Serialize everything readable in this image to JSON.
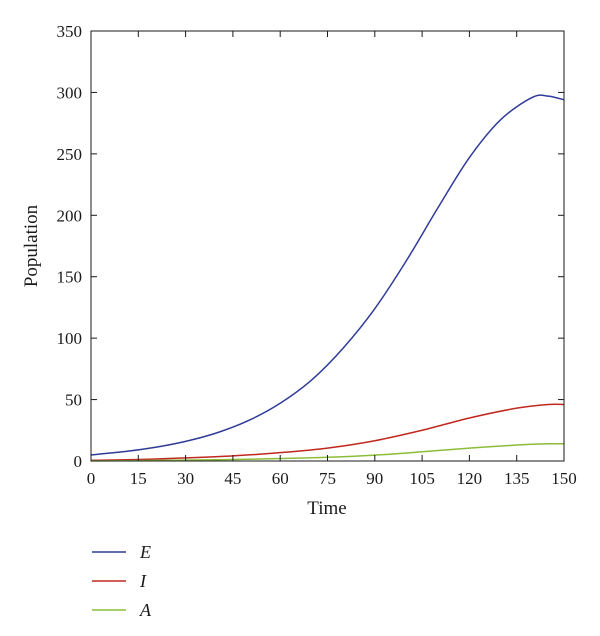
{
  "chart_data": {
    "type": "line",
    "xlabel": "Time",
    "ylabel": "Population",
    "xlim": [
      0,
      150
    ],
    "ylim": [
      0,
      350
    ],
    "xticks": [
      0,
      15,
      30,
      45,
      60,
      75,
      90,
      105,
      120,
      135,
      150
    ],
    "yticks": [
      0,
      50,
      100,
      150,
      200,
      250,
      300,
      350
    ],
    "grid": false,
    "legend_position": "below",
    "series": [
      {
        "name": "E",
        "color": "#2f3b98",
        "x": [
          0,
          10,
          20,
          30,
          40,
          50,
          60,
          70,
          80,
          90,
          100,
          110,
          120,
          130,
          140,
          145,
          150
        ],
        "values": [
          5,
          7.5,
          11,
          16,
          23,
          33,
          47,
          66,
          92,
          124,
          163,
          206,
          247,
          278,
          296,
          297,
          294
        ]
      },
      {
        "name": "I",
        "color": "#c0281e",
        "x": [
          0,
          15,
          30,
          45,
          60,
          75,
          90,
          105,
          120,
          135,
          145,
          150
        ],
        "values": [
          0.5,
          1.2,
          2.5,
          4.2,
          6.8,
          10.5,
          16.5,
          25,
          35,
          43,
          46,
          46
        ]
      },
      {
        "name": "A",
        "color": "#8bbd38",
        "x": [
          0,
          15,
          30,
          45,
          60,
          75,
          90,
          105,
          120,
          135,
          145,
          150
        ],
        "values": [
          0.1,
          0.3,
          0.7,
          1.2,
          2,
          3,
          4.8,
          7.5,
          10.5,
          13,
          14,
          14
        ]
      }
    ]
  }
}
